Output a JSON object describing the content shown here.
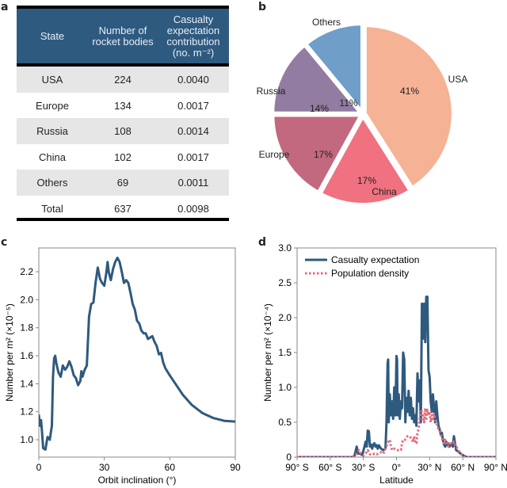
{
  "panels": {
    "a": "a",
    "b": "b",
    "c": "c",
    "d": "d"
  },
  "table": {
    "headers": [
      "State",
      "Number of\nrocket bodies",
      "Casualty\nexpectation\ncontribution\n(no. m⁻²)"
    ],
    "header_color": "#2e5a80",
    "rows": [
      [
        "USA",
        "224",
        "0.0040"
      ],
      [
        "Europe",
        "134",
        "0.0017"
      ],
      [
        "Russia",
        "108",
        "0.0014"
      ],
      [
        "China",
        "102",
        "0.0017"
      ],
      [
        "Others",
        "69",
        "0.0011"
      ],
      [
        "Total",
        "637",
        "0.0098"
      ]
    ]
  },
  "chart_data": [
    {
      "type": "pie",
      "slices": [
        {
          "label": "USA",
          "value": 41,
          "pct_label": "41%",
          "color": "#f5b295"
        },
        {
          "label": "China",
          "value": 17,
          "pct_label": "17%",
          "color": "#f0717f"
        },
        {
          "label": "Europe",
          "value": 17,
          "pct_label": "17%",
          "color": "#c2687f"
        },
        {
          "label": "Russia",
          "value": 14,
          "pct_label": "14%",
          "color": "#927ca1"
        },
        {
          "label": "Others",
          "value": 11,
          "pct_label": "11%",
          "color": "#6f9fc9"
        }
      ]
    },
    {
      "type": "line",
      "xlabel": "Orbit inclination (°)",
      "ylabel": "Number per m² (×10⁻⁵)",
      "xlim": [
        0,
        90
      ],
      "ylim": [
        0.876,
        2.37
      ],
      "xticks": [
        0,
        30,
        60,
        90
      ],
      "xtick_labels": [
        "0",
        "30",
        "60",
        "90"
      ],
      "yticks": [
        1.0,
        1.2,
        1.4,
        1.6,
        1.8,
        2.0,
        2.2
      ],
      "ytick_labels": [
        "1.0",
        "1.2",
        "1.4",
        "1.6",
        "1.8",
        "2.0",
        "2.2"
      ],
      "grid": false,
      "series": [
        {
          "color": "#2e5a7e",
          "style": "solid",
          "x": [
            0,
            0.5,
            1,
            1.5,
            2,
            3,
            4,
            5,
            6,
            6.5,
            7,
            7.5,
            8,
            9,
            10,
            11,
            12,
            13,
            14,
            15,
            16,
            17,
            18,
            19,
            19.5,
            20,
            21,
            22,
            23,
            24,
            25,
            26,
            27,
            28,
            29,
            30,
            31,
            31.5,
            32,
            33,
            34,
            35,
            36,
            37,
            38,
            39,
            40,
            41,
            42,
            43,
            44,
            45,
            46,
            47,
            48,
            49,
            50,
            51,
            52,
            53,
            54,
            55,
            56,
            57,
            58,
            60,
            63,
            66,
            70,
            75,
            80,
            85,
            90
          ],
          "y": [
            1.18,
            1.1,
            1.14,
            1.05,
            0.94,
            0.93,
            1.02,
            1.0,
            1.1,
            1.45,
            1.58,
            1.6,
            1.55,
            1.48,
            1.45,
            1.53,
            1.5,
            1.52,
            1.56,
            1.52,
            1.46,
            1.44,
            1.39,
            1.42,
            1.49,
            1.45,
            1.5,
            1.53,
            1.88,
            1.97,
            1.98,
            2.12,
            2.23,
            2.15,
            2.12,
            2.1,
            2.2,
            2.27,
            2.2,
            2.14,
            2.22,
            2.27,
            2.3,
            2.27,
            2.2,
            2.12,
            2.14,
            2.12,
            2.05,
            1.97,
            1.93,
            1.85,
            1.83,
            1.78,
            1.76,
            1.76,
            1.72,
            1.73,
            1.74,
            1.7,
            1.67,
            1.61,
            1.62,
            1.55,
            1.51,
            1.46,
            1.39,
            1.32,
            1.25,
            1.19,
            1.155,
            1.135,
            1.13
          ]
        }
      ]
    },
    {
      "type": "line",
      "xlabel": "Latitude",
      "ylabel": "Number per m² (×10⁻⁴)",
      "xlim": [
        -90,
        90
      ],
      "ylim": [
        0,
        3.0
      ],
      "xticks": [
        -90,
        -60,
        -30,
        0,
        30,
        60,
        90
      ],
      "xtick_labels": [
        "90° S",
        "60° S",
        "30° S",
        "0°",
        "30° N",
        "60° N",
        "90° N"
      ],
      "yticks": [
        0,
        0.5,
        1.0,
        1.5,
        2.0,
        2.5,
        3.0
      ],
      "ytick_labels": [
        "0",
        "0.5",
        "1.0",
        "1.5",
        "2.0",
        "2.5",
        "3.0"
      ],
      "grid": false,
      "legend": "top-left",
      "series": [
        {
          "name": "Casualty expectation",
          "color": "#2e5a7e",
          "style": "solid",
          "x": [
            -90,
            -40,
            -38,
            -36,
            -35,
            -33,
            -31,
            -29,
            -28,
            -27,
            -26,
            -25,
            -24,
            -23,
            -22,
            -21,
            -20,
            -19,
            -18,
            -17,
            -16,
            -14,
            -12,
            -10,
            -9,
            -8,
            -7.5,
            -7,
            -6,
            -5,
            -4,
            -3,
            -2,
            -1,
            0,
            0.5,
            1,
            2,
            3,
            4,
            5,
            6,
            7,
            8,
            9,
            10,
            11,
            12,
            13,
            14,
            15,
            16,
            17,
            18,
            19,
            20,
            21,
            22,
            23,
            24,
            25,
            26,
            27,
            28,
            29,
            30,
            31,
            32,
            33,
            34,
            35,
            36,
            37,
            38,
            39,
            40,
            41,
            42,
            43,
            44,
            45,
            46,
            47,
            48,
            49,
            50,
            51,
            52,
            53,
            54,
            56,
            58,
            60,
            62,
            64,
            90
          ],
          "y": [
            0,
            0,
            0.02,
            0.15,
            0.05,
            0.05,
            0.03,
            0.15,
            0.22,
            0.15,
            0.38,
            0.37,
            0.15,
            0.18,
            0.12,
            0.18,
            0.2,
            0.15,
            0.17,
            0.12,
            0.17,
            0.12,
            0.1,
            0.12,
            0.5,
            1.35,
            1.4,
            0.5,
            0.9,
            0.6,
            0.8,
            0.55,
            1.0,
            0.6,
            1.45,
            1.4,
            0.6,
            0.9,
            0.55,
            0.8,
            0.7,
            1.5,
            1.4,
            0.5,
            0.85,
            0.65,
            0.95,
            0.6,
            0.85,
            0.55,
            0.7,
            0.5,
            0.6,
            0.45,
            1.2,
            0.8,
            1.1,
            0.5,
            2.2,
            1.7,
            2.2,
            1.65,
            2.3,
            2.3,
            1.25,
            1.15,
            0.8,
            0.65,
            0.9,
            0.7,
            0.5,
            0.8,
            0.6,
            0.45,
            0.4,
            0.33,
            0.35,
            0.25,
            0.18,
            0.15,
            0.22,
            0.17,
            0.2,
            0.15,
            0.18,
            0.2,
            0.15,
            0.3,
            0.2,
            0.1,
            0.08,
            0.05,
            0.03,
            0.01,
            0,
            0
          ]
        },
        {
          "name": "Population density",
          "color": "#e86a7a",
          "style": "dotted",
          "x": [
            -90,
            -40,
            -36,
            -34,
            -32,
            -30,
            -28,
            -26,
            -24,
            -22,
            -20,
            -18,
            -16,
            -14,
            -12,
            -10,
            -8,
            -6,
            -5,
            -4,
            -2,
            0,
            2,
            4,
            5,
            6,
            8,
            10,
            12,
            14,
            15,
            16,
            17,
            18,
            19,
            20,
            21,
            22,
            23,
            24,
            25,
            26,
            27,
            28,
            29,
            30,
            31,
            32,
            33,
            34,
            35,
            36,
            37,
            38,
            39,
            40,
            41,
            42,
            43,
            44,
            45,
            46,
            47,
            48,
            50,
            52,
            54,
            56,
            58,
            60,
            62,
            90
          ],
          "y": [
            0,
            0,
            0.05,
            0.1,
            0.05,
            0.02,
            0.05,
            0.1,
            0.04,
            0.03,
            0.05,
            0.04,
            0.05,
            0.07,
            0.05,
            0.12,
            0.2,
            0.25,
            0.15,
            0.1,
            0.12,
            0.1,
            0.1,
            0.1,
            0.2,
            0.25,
            0.25,
            0.3,
            0.3,
            0.25,
            0.22,
            0.3,
            0.2,
            0.2,
            0.35,
            0.4,
            0.55,
            0.65,
            0.65,
            0.6,
            0.5,
            0.7,
            0.55,
            0.68,
            0.6,
            0.65,
            0.5,
            0.6,
            0.55,
            0.62,
            0.55,
            0.5,
            0.45,
            0.4,
            0.38,
            0.32,
            0.28,
            0.22,
            0.2,
            0.25,
            0.2,
            0.2,
            0.15,
            0.22,
            0.18,
            0.22,
            0.15,
            0.1,
            0.05,
            0.02,
            0,
            0
          ]
        }
      ]
    }
  ]
}
